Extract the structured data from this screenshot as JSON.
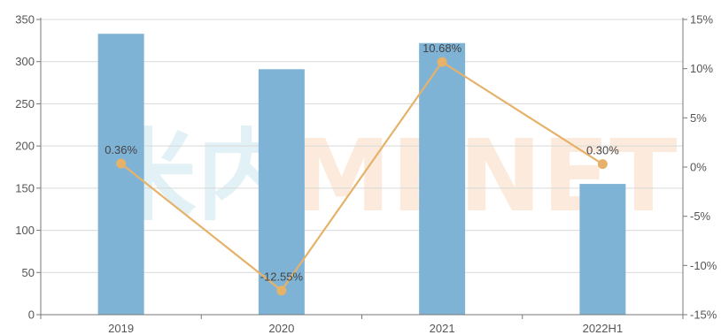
{
  "chart_data": {
    "type": "bar",
    "categories": [
      "2019",
      "2020",
      "2021",
      "2022H1"
    ],
    "series": [
      {
        "type": "bar",
        "axis": "left",
        "values": [
          333,
          291,
          322,
          155
        ]
      },
      {
        "type": "line",
        "axis": "right",
        "values": [
          0.36,
          -12.55,
          10.68,
          0.3
        ],
        "data_labels": [
          "0.36%",
          "-12.55%",
          "10.68%",
          "0.30%"
        ]
      }
    ],
    "y_left": {
      "ylim": [
        0,
        350
      ],
      "ticks": [
        "0",
        "50",
        "100",
        "150",
        "200",
        "250",
        "300",
        "350"
      ]
    },
    "y_right": {
      "ylim": [
        -15,
        15
      ],
      "ticks": [
        "-15%",
        "-10%",
        "-5%",
        "0%",
        "5%",
        "10%",
        "15%"
      ]
    },
    "grid": true,
    "legend": "none",
    "colors": {
      "bar": "#7fb3d5",
      "line": "#e6b26a",
      "grid": "#d9d9d9",
      "axis": "#777777"
    },
    "watermark": {
      "cjk": "米内",
      "latin": "MENET"
    }
  }
}
